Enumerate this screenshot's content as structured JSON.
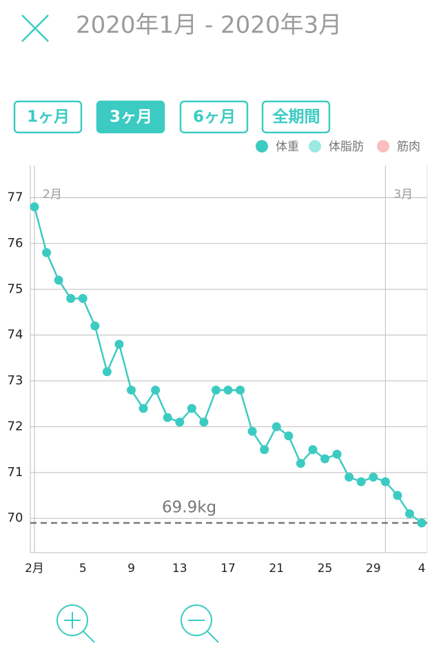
{
  "header": {
    "title": "2020年1月 - 2020年3月"
  },
  "period_buttons": [
    "1ヶ月",
    "3ヶ月",
    "6ヶ月",
    "全期間"
  ],
  "active_button": 1,
  "chart_data": {
    "type": "line",
    "categories": [
      "2月",
      null,
      null,
      null,
      "5",
      null,
      null,
      null,
      "9",
      null,
      null,
      null,
      "13",
      null,
      null,
      null,
      "17",
      null,
      null,
      null,
      "21",
      null,
      null,
      null,
      "25",
      null,
      null,
      null,
      "29",
      null,
      null,
      null,
      "4"
    ],
    "month_labels": [
      "2月",
      null,
      null,
      null,
      null,
      null,
      null,
      null,
      null,
      null,
      null,
      null,
      null,
      null,
      null,
      null,
      null,
      null,
      null,
      null,
      null,
      null,
      null,
      null,
      null,
      null,
      null,
      null,
      null,
      "3月",
      null,
      null,
      null
    ],
    "series": [
      {
        "name": "体重",
        "color": "#3ccbc2",
        "values": [
          76.8,
          75.8,
          75.2,
          74.8,
          74.8,
          74.2,
          73.2,
          73.8,
          72.8,
          72.4,
          72.8,
          72.2,
          72.1,
          72.4,
          72.1,
          72.8,
          72.8,
          72.8,
          71.9,
          71.5,
          72.0,
          71.8,
          71.2,
          71.5,
          71.3,
          71.4,
          70.9,
          70.8,
          70.9,
          70.8,
          70.5,
          70.1,
          69.9
        ]
      }
    ],
    "other_legend": [
      {
        "name": "体脂肪",
        "color": "#9ce8e2"
      },
      {
        "name": "筋肉",
        "color": "#f9bfbf"
      }
    ],
    "ylim": [
      69.25,
      77.7
    ],
    "yticks": [
      70,
      71,
      72,
      73,
      74,
      75,
      76,
      77
    ],
    "grid": true,
    "target": 69.9,
    "target_label": "69.9kg"
  }
}
